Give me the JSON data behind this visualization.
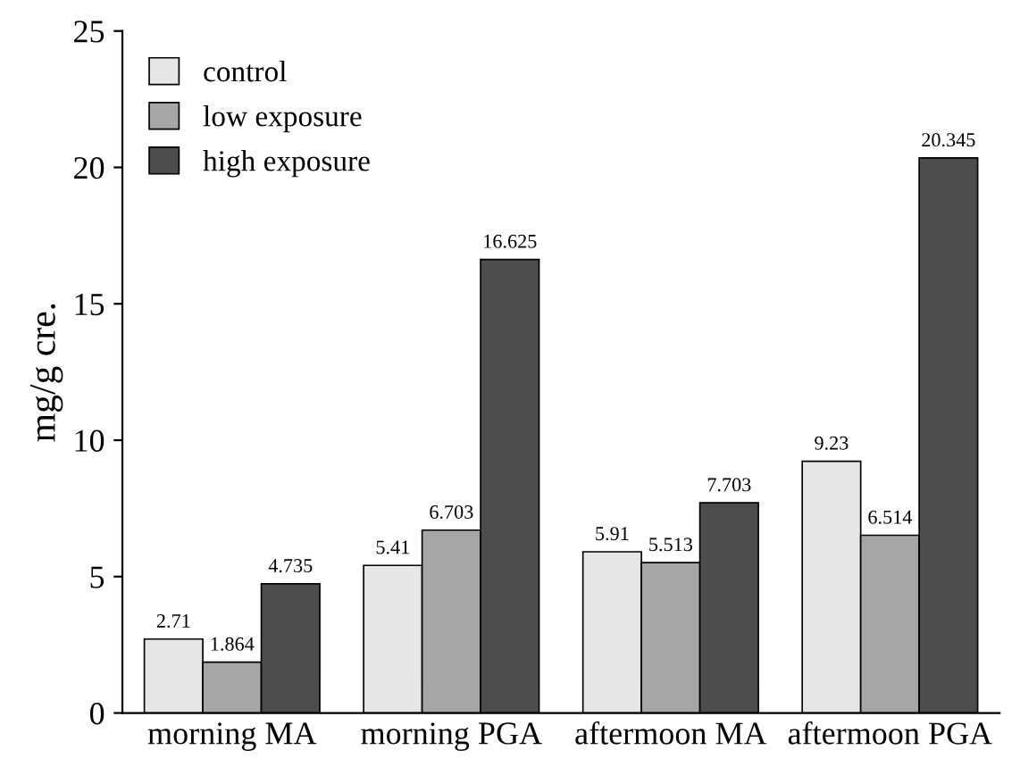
{
  "chart_data": {
    "type": "bar",
    "ylabel": "mg/g cre.",
    "categories": [
      "morning MA",
      "morning PGA",
      "aftermoon MA",
      "aftermoon PGA"
    ],
    "series": [
      {
        "name": "control",
        "color": "#e6e6e6",
        "values": [
          2.71,
          5.41,
          5.91,
          9.23
        ]
      },
      {
        "name": "low exposure",
        "color": "#a6a6a6",
        "values": [
          1.864,
          6.703,
          5.513,
          6.514
        ]
      },
      {
        "name": "high exposure",
        "color": "#4d4d4d",
        "values": [
          4.735,
          16.625,
          7.703,
          20.345
        ]
      }
    ],
    "ylim": [
      0,
      25
    ],
    "yticks": [
      0,
      5,
      10,
      15,
      20,
      25
    ],
    "grid": false,
    "legend": "top left",
    "data_labels": true
  }
}
